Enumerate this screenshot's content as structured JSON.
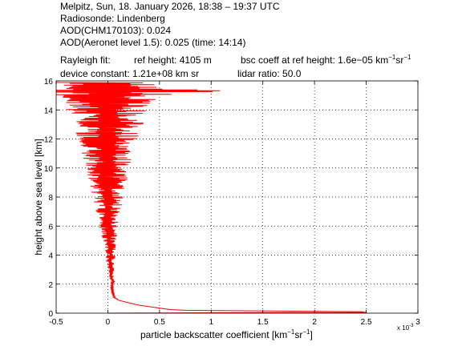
{
  "header": {
    "line1": "Melpitz, Sun, 18. January 2026, 18:38 – 19:37 UTC",
    "line2": "Radiosonde: Lindenberg",
    "line3": "AOD(CHM170103): 0.024",
    "line4": "AOD(Aeronet level 1.5): 0.025   (time: 14:14)",
    "rayleigh_label": "Rayleigh fit:",
    "ref_height": "ref height: 4105 m",
    "bsc_coeff_prefix": "bsc coeff at ref height: 1.6e−05 km",
    "bsc_coeff_sr": "sr",
    "device_constant": "device constant: 1.21e+08 km sr",
    "lidar_ratio": "lidar ratio: 50.0"
  },
  "chart_data": {
    "type": "line",
    "xlabel": "particle backscatter coefficient [km",
    "xlabel_sr": "sr",
    "ylabel": "height above sea level [km]",
    "x_multiplier": "x 10",
    "x_multiplier_exp": "-3",
    "xlim": [
      -0.5,
      3
    ],
    "ylim": [
      0,
      16
    ],
    "x_ticks": [
      -0.5,
      0,
      0.5,
      1,
      1.5,
      2,
      2.5,
      3
    ],
    "x_tick_labels": [
      "-0.5",
      "0",
      "0.5",
      "1",
      "1.5",
      "2",
      "2.5",
      "3"
    ],
    "y_ticks": [
      0,
      2,
      4,
      6,
      8,
      10,
      12,
      14,
      16
    ],
    "y_tick_labels": [
      "0",
      "2",
      "4",
      "6",
      "8",
      "10",
      "12",
      "14",
      "16"
    ],
    "grid": true,
    "series": [
      {
        "color": "#ff0000",
        "profile_points": [
          [
            0.0,
            0.0
          ],
          [
            2.5,
            0.05
          ],
          [
            2.45,
            0.1
          ],
          [
            0.75,
            0.2
          ],
          [
            0.6,
            0.25
          ],
          [
            0.45,
            0.4
          ],
          [
            0.3,
            0.55
          ],
          [
            0.18,
            0.75
          ],
          [
            0.1,
            0.9
          ],
          [
            0.06,
            1.1
          ],
          [
            0.05,
            1.4
          ],
          [
            0.04,
            1.8
          ],
          [
            0.05,
            2.2
          ],
          [
            0.03,
            2.6
          ],
          [
            0.04,
            3.0
          ],
          [
            0.02,
            3.5
          ],
          [
            0.03,
            4.0
          ],
          [
            0.02,
            4.5
          ],
          [
            0.01,
            5.0
          ],
          [
            0.02,
            5.5
          ],
          [
            0.0,
            6.0
          ],
          [
            0.01,
            6.5
          ],
          [
            0.0,
            7.0
          ],
          [
            0.01,
            7.5
          ],
          [
            0.0,
            8.0
          ],
          [
            0.0,
            8.5
          ],
          [
            0.0,
            9.0
          ],
          [
            0.0,
            9.5
          ],
          [
            0.0,
            10.0
          ],
          [
            0.0,
            10.5
          ],
          [
            0.0,
            11.0
          ],
          [
            0.0,
            11.5
          ],
          [
            0.0,
            12.0
          ],
          [
            0.0,
            12.5
          ],
          [
            0.0,
            13.0
          ],
          [
            0.0,
            13.5
          ],
          [
            0.0,
            14.0
          ],
          [
            0.0,
            14.5
          ],
          [
            0.0,
            15.0
          ],
          [
            0.0,
            15.5
          ],
          [
            0.0,
            16.0
          ]
        ],
        "spread_by_height": [
          [
            0.0,
            0.0
          ],
          [
            1.0,
            0.01
          ],
          [
            2.0,
            0.02
          ],
          [
            3.0,
            0.03
          ],
          [
            4.0,
            0.05
          ],
          [
            5.0,
            0.07
          ],
          [
            6.0,
            0.09
          ],
          [
            7.0,
            0.12
          ],
          [
            8.0,
            0.15
          ],
          [
            9.0,
            0.18
          ],
          [
            10.0,
            0.22
          ],
          [
            11.0,
            0.26
          ],
          [
            12.0,
            0.3
          ],
          [
            13.0,
            0.35
          ],
          [
            14.0,
            0.4
          ],
          [
            15.0,
            0.5
          ],
          [
            15.3,
            1.3
          ],
          [
            15.5,
            0.6
          ],
          [
            16.0,
            0.5
          ]
        ]
      }
    ]
  }
}
